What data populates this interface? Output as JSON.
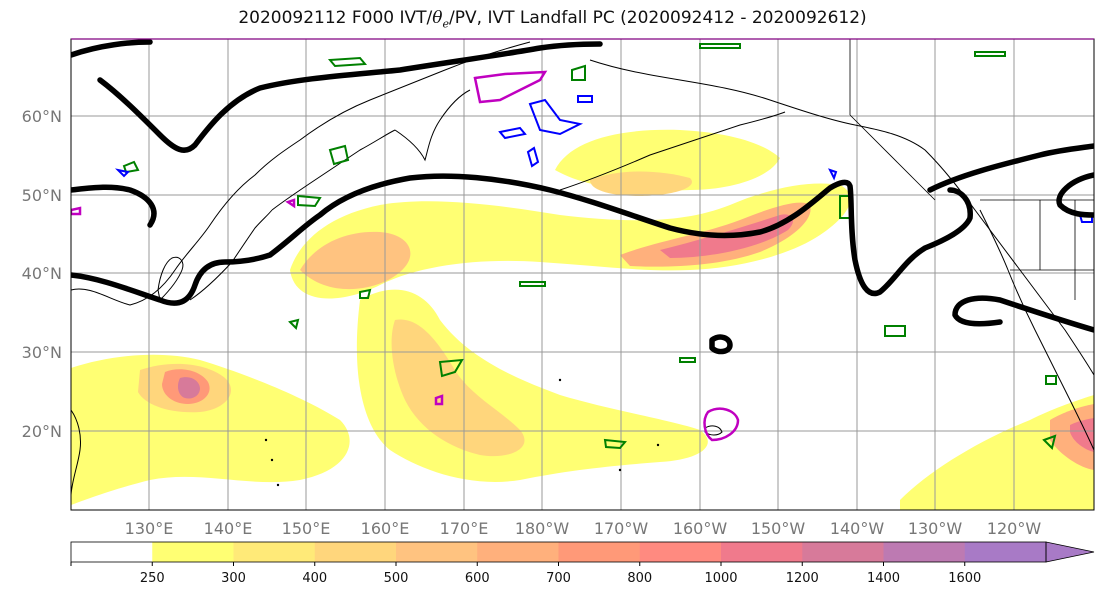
{
  "title": {
    "prefix": "2020092112 F000 IVT/",
    "theta": "θ",
    "theta_sub": "e",
    "suffix": "/PV, IVT Landfall PC (2020092412 - 2020092612)"
  },
  "map": {
    "projection": "cylindrical",
    "lon_range": [
      "120°E",
      "110°W"
    ],
    "lat_range": [
      10,
      70
    ],
    "lat_labels": [
      "20°N",
      "30°N",
      "40°N",
      "50°N",
      "60°N"
    ],
    "lon_labels": [
      "130°E",
      "140°E",
      "150°E",
      "160°E",
      "170°E",
      "180°W",
      "170°W",
      "160°W",
      "150°W",
      "140°W",
      "130°W",
      "120°W"
    ],
    "grid": true,
    "contour_colors": {
      "pv_thick": "#000000",
      "theta_green": "#008000",
      "blue": "#0000ff",
      "magenta": "#c000c0",
      "coastline": "#000000"
    }
  },
  "colorbar": {
    "levels": [
      "250",
      "300",
      "400",
      "500",
      "600",
      "700",
      "800",
      "1000",
      "1200",
      "1400",
      "1600"
    ],
    "colors": [
      "#ffffff",
      "#ffff73",
      "#ffea78",
      "#ffd67c",
      "#ffc380",
      "#ffb07c",
      "#ff9978",
      "#ff8a80",
      "#f07a8c",
      "#d77a9a",
      "#bd7ab2",
      "#a87ac6"
    ],
    "extend": "max"
  }
}
